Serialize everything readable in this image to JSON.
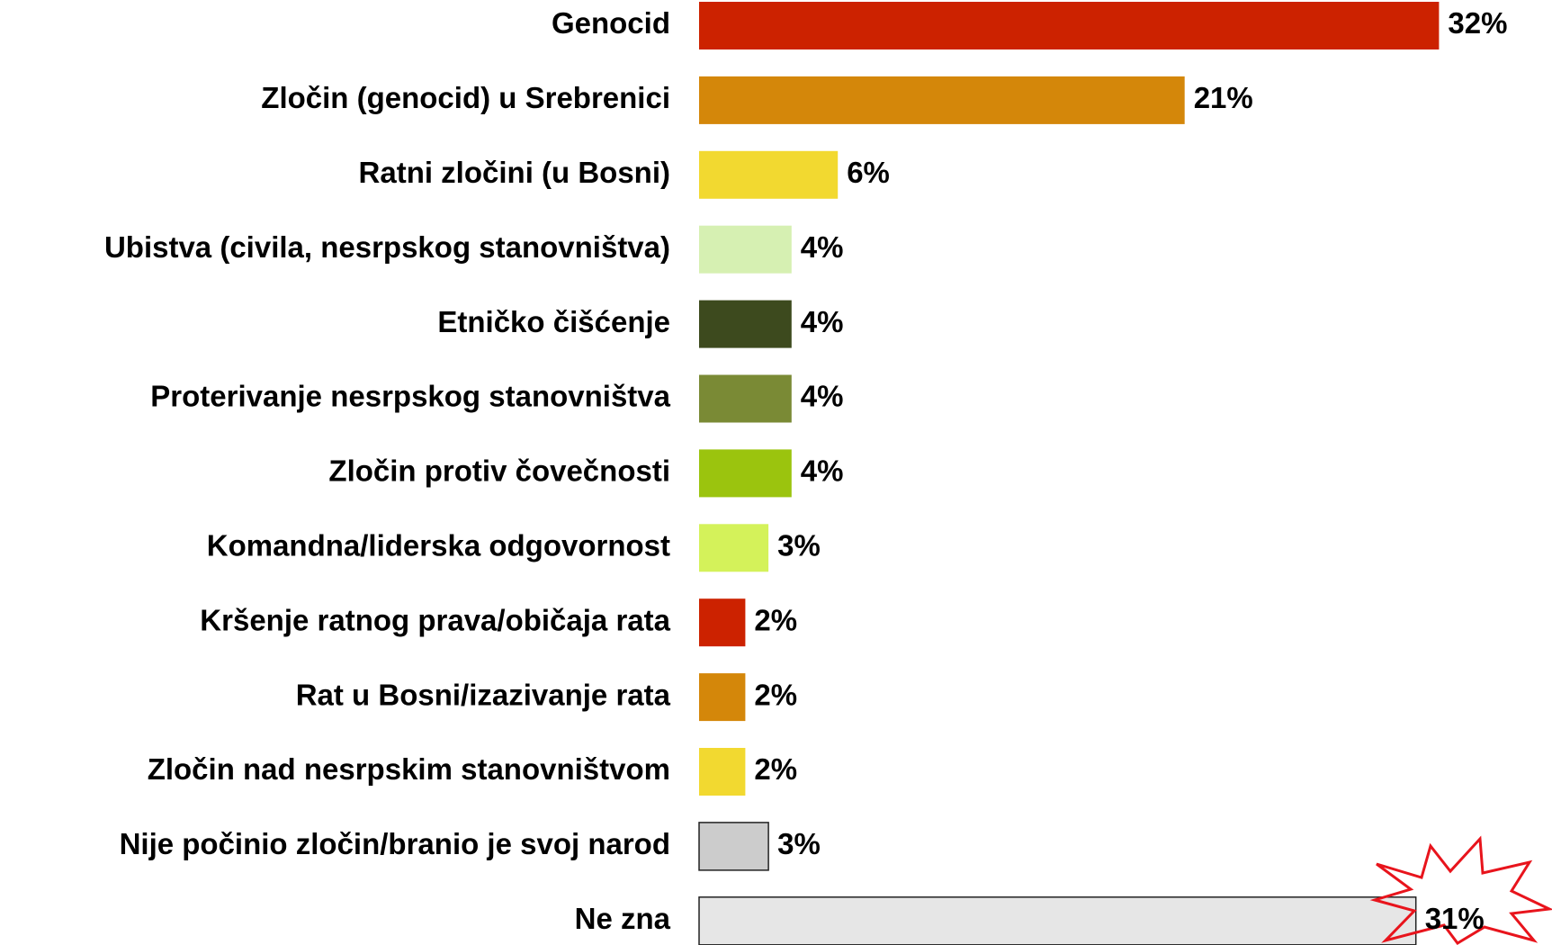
{
  "chart_data": {
    "type": "bar",
    "orientation": "horizontal",
    "categories": [
      "Genocid",
      "Zločin (genocid) u Srebrenici",
      "Ratni zločini (u Bosni)",
      "Ubistva (civila, nesrpskog stanovništva)",
      "Etničko čišćenje",
      "Proterivanje nesrpskog stanovništva",
      "Zločin protiv čovečnosti",
      "Komandna/liderska odgovornost",
      "Kršenje ratnog prava/običaja rata",
      "Rat u Bosni/izazivanje rata",
      "Zločin nad nesrpskim stanovništvom",
      "Nije počinio zločin/branio je svoj narod",
      "Ne zna"
    ],
    "values": [
      32,
      21,
      6,
      4,
      4,
      4,
      4,
      3,
      2,
      2,
      2,
      3,
      31
    ],
    "value_labels": [
      "32%",
      "21%",
      "6%",
      "4%",
      "4%",
      "4%",
      "4%",
      "3%",
      "2%",
      "2%",
      "2%",
      "3%",
      "31%"
    ],
    "colors": [
      "#cc2200",
      "#d4870a",
      "#f2d930",
      "#d6f0b2",
      "#3d4a1e",
      "#7a8a35",
      "#9bc40e",
      "#d4f25a",
      "#cc2200",
      "#d4870a",
      "#f2d930",
      "#cccccc",
      "#e6e6e6"
    ]
  }
}
